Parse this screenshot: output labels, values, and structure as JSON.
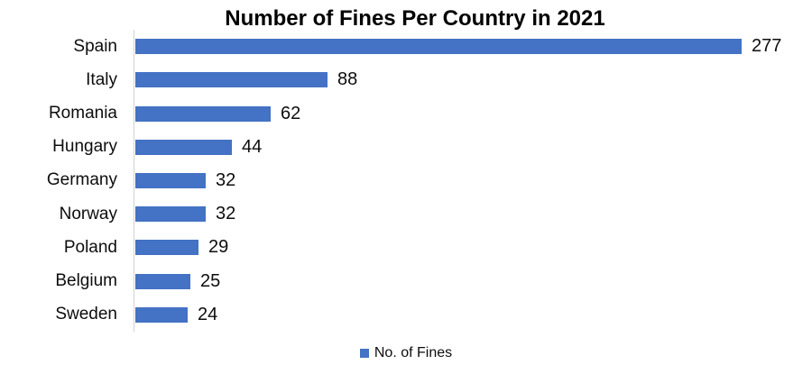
{
  "title": "Number of Fines Per Country in 2021",
  "legend": {
    "label": "No. of Fines",
    "marker_color": "#4472C4"
  },
  "colors": {
    "bar": "#4472C4",
    "axis_line": "#D2D2D2",
    "text": "#0D0D0D",
    "background": "#FFFFFF"
  },
  "chart_data": {
    "type": "bar",
    "orientation": "horizontal",
    "title": "Number of Fines Per Country in 2021",
    "categories": [
      "Spain",
      "Italy",
      "Romania",
      "Hungary",
      "Germany",
      "Norway",
      "Poland",
      "Belgium",
      "Sweden"
    ],
    "values": [
      277,
      88,
      62,
      44,
      32,
      32,
      29,
      25,
      24
    ],
    "series": [
      {
        "name": "No. of Fines",
        "values": [
          277,
          88,
          62,
          44,
          32,
          32,
          29,
          25,
          24
        ]
      }
    ],
    "xlabel": "",
    "ylabel": "",
    "xlim": [
      0,
      300
    ],
    "grid": false,
    "data_labels": true,
    "legend_position": "bottom",
    "legend_entries": [
      "No. of Fines"
    ]
  }
}
